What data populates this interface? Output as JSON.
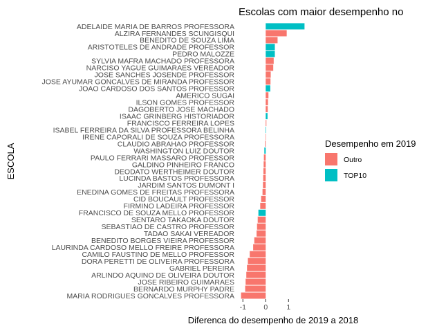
{
  "chart_data": {
    "type": "bar",
    "orientation": "horizontal",
    "title": "Escolas com maior desempenho no",
    "xlabel": "Diferenca do desempenho de 2019 a 2018",
    "ylabel": "ESCOLA",
    "xlim": [
      -1.25,
      1.9
    ],
    "xticks": [
      -1,
      0,
      1
    ],
    "grid": false,
    "legend": {
      "title": "Desempenho em 2019",
      "placement": "right",
      "entries": [
        {
          "label": "Outro",
          "color": "#F8766D"
        },
        {
          "label": "TOP10",
          "color": "#00BFC4"
        }
      ]
    },
    "categories": [
      "ADELAIDE MARIA DE BARROS PROFESSORA",
      "ALZIRA FERNANDES SCUNGISQUI",
      "BENEDITO DE SOUZA LIMA",
      "ARISTOTELES DE ANDRADE PROFESSOR",
      "PEDRO MALOZZE",
      "SYLVIA MAFRA MACHADO PROFESSORA",
      "NARCISO YAGUE GUIMARAES VEREADOR",
      "JOSE SANCHES JOSENDE PROFESSOR",
      "JOSE AYUMAR GONCALVES DE MIRANDA PROFESSOR",
      "JOAO CARDOSO DOS SANTOS PROFESSOR",
      "AMERICO SUGAI",
      "ILSON GOMES PROFESSOR",
      "DAGOBERTO JOSE MACHADO",
      "ISAAC GRINBERG HISTORIADOR",
      "FRANCISCO FERREIRA LOPES",
      "ISABEL FERREIRA DA SILVA PROFESSORA BELINHA",
      "IRENE CAPORALI DE SOUZA PROFESSORA",
      "CLAUDIO ABRAHAO PROFESSOR",
      "WASHINGTON LUIZ DOUTOR",
      "PAULO FERRARI MASSARO PROFESSOR",
      "GALDINO PINHEIRO FRANCO",
      "DEODATO WERTHEIMER DOUTOR",
      "LUCINDA BASTOS PROFESSORA",
      "JARDIM SANTOS DUMONT I",
      "ENEDINA GOMES DE FREITAS PROFESSORA",
      "CID BOUCAULT PROFESSOR",
      "FIRMINO LADEIRA PROFESSOR",
      "FRANCISCO DE SOUZA MELLO PROFESSOR",
      "SENTARO TAKAOKA DOUTOR",
      "SEBASTIAO DE CASTRO PROFESSOR",
      "TADAO SAKAI VEREADOR",
      "BENEDITO BORGES VIEIRA PROFESSOR",
      "LAURINDA CARDOSO MELLO FREIRE PROFESSORA",
      "CAMILO FAUSTINO DE MELLO PROFESSOR",
      "DORA PERETTI DE OLIVEIRA PROFESSORA",
      "GABRIEL PEREIRA",
      "ARLINDO AQUINO DE OLIVEIRA DOUTOR",
      "JOSE RIBEIRO GUIMARAES",
      "BERNARDO MURPHY PADRE",
      "MARIA RODRIGUES GONCALVES PROFESSORA"
    ],
    "values": [
      1.7,
      0.92,
      0.52,
      0.4,
      0.4,
      0.35,
      0.33,
      0.22,
      0.21,
      0.2,
      0.12,
      0.1,
      0.09,
      0.08,
      0.03,
      0.02,
      -0.01,
      -0.03,
      -0.06,
      -0.08,
      -0.09,
      -0.1,
      -0.11,
      -0.12,
      -0.14,
      -0.2,
      -0.24,
      -0.32,
      -0.35,
      -0.38,
      -0.4,
      -0.5,
      -0.55,
      -0.7,
      -0.78,
      -0.82,
      -0.85,
      -0.88,
      -0.9,
      -1.08
    ],
    "groups": [
      "TOP10",
      "Outro",
      "Outro",
      "TOP10",
      "TOP10",
      "Outro",
      "Outro",
      "Outro",
      "Outro",
      "TOP10",
      "Outro",
      "Outro",
      "Outro",
      "TOP10",
      "Outro",
      "TOP10",
      "Outro",
      "Outro",
      "TOP10",
      "Outro",
      "Outro",
      "Outro",
      "Outro",
      "Outro",
      "Outro",
      "Outro",
      "Outro",
      "TOP10",
      "Outro",
      "Outro",
      "Outro",
      "Outro",
      "Outro",
      "Outro",
      "Outro",
      "Outro",
      "Outro",
      "Outro",
      "Outro",
      "Outro"
    ]
  }
}
